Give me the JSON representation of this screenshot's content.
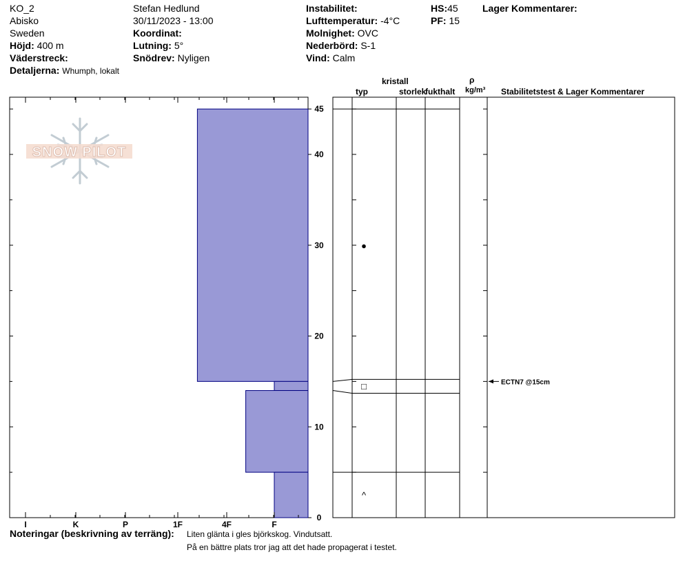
{
  "header": {
    "pit_name": "KO_2",
    "location": "Abisko",
    "country": "Sweden",
    "observer": "Stefan Hedlund",
    "datetime": "30/11/2023 - 13:00",
    "elevation_label": "Höjd:",
    "elevation": "400 m",
    "aspect_label": "Väderstreck:",
    "aspect": "",
    "details_label": "Detaljerna:",
    "details": "Whumph, lokalt",
    "coordinate_label": "Koordinat:",
    "coordinate": "",
    "slope_label": "Lutning:",
    "slope": "5°",
    "wind_loading_label": "Snödrev:",
    "wind_loading": "Nyligen",
    "instability_label": "Instabilitet:",
    "instability": "",
    "air_temp_label": "Lufttemperatur:",
    "air_temp": "-4°C",
    "sky_label": "Molnighet:",
    "sky": "OVC",
    "precip_label": "Nederbörd:",
    "precip": "S-1",
    "wind_label": "Vind:",
    "wind": "Calm",
    "hs_label": "HS:",
    "hs": "45",
    "pf_label": "PF:",
    "pf": "15",
    "layer_comments_label": "Lager Kommentarer:"
  },
  "logo": {
    "text": "SNOW PILOT"
  },
  "columns": {
    "type": "typ",
    "crystal": "kristall",
    "size": "storlek",
    "moisture": "fukthalt",
    "rho": "ρ",
    "density_unit": "kg/m³",
    "stability": "Stabilitetstest & Lager Kommentarer"
  },
  "notes": {
    "label": "Noteringar (beskrivning av terräng):",
    "line1": "Liten glänta i gles björkskog. Vindutsatt.",
    "line2": "På en bättre plats tror jag att det hade propagerat i testet."
  },
  "colors": {
    "layer_fill": "#9999d6",
    "layer_stroke": "#000080"
  },
  "chart_data": {
    "type": "bar",
    "orientation": "horizontal",
    "description_axis": "hardness_profile",
    "hardness_ticks": [
      "I",
      "K",
      "P",
      "1F",
      "4F",
      "F"
    ],
    "height_ticks": [
      "0",
      "10",
      "20",
      "30",
      "40",
      "45"
    ],
    "height_range_cm": [
      0,
      45
    ],
    "layers": [
      {
        "top_cm": 45,
        "bottom_cm": 15,
        "hardness_value": 3.4
      },
      {
        "top_cm": 15,
        "bottom_cm": 14,
        "hardness_value": 5.0
      },
      {
        "top_cm": 14,
        "bottom_cm": 5,
        "hardness_value": 4.4
      },
      {
        "top_cm": 5,
        "bottom_cm": 0,
        "hardness_value": 5.0
      }
    ],
    "layer_lines_cm": [
      45,
      15,
      14,
      5
    ],
    "crystal_symbols": [
      {
        "height_cm": 30,
        "symbol": "●"
      },
      {
        "height_cm": 14.5,
        "symbol": "□"
      },
      {
        "height_cm": 2.5,
        "symbol": "^"
      }
    ],
    "tests": [
      {
        "height_cm": 15,
        "label": "ECTN7 @15cm"
      }
    ]
  }
}
